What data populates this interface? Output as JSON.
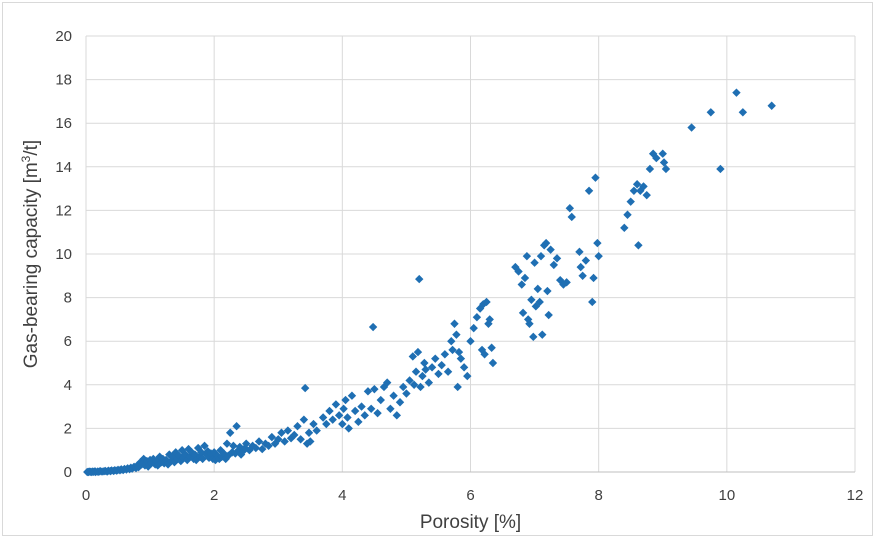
{
  "chart_data": {
    "type": "scatter",
    "xlabel": "Porosity [%]",
    "ylabel": {
      "prefix": "Gas-bearing capacity [m",
      "superscript": "3",
      "suffix": "/t]"
    },
    "xlim": [
      0,
      12
    ],
    "ylim": [
      0,
      20
    ],
    "xticks": [
      "0",
      "2",
      "4",
      "6",
      "8",
      "10",
      "12"
    ],
    "yticks": [
      "0",
      "2",
      "4",
      "6",
      "8",
      "10",
      "12",
      "14",
      "16",
      "18",
      "20"
    ],
    "grid": true,
    "marker": "diamond",
    "color": "#1f6fb3",
    "series": [
      {
        "points": [
          [
            0.02,
            0.0
          ],
          [
            0.04,
            0.0
          ],
          [
            0.05,
            0.02
          ],
          [
            0.07,
            0.01
          ],
          [
            0.09,
            0.0
          ],
          [
            0.1,
            0.02
          ],
          [
            0.12,
            0.01
          ],
          [
            0.14,
            0.03
          ],
          [
            0.15,
            0.0
          ],
          [
            0.18,
            0.02
          ],
          [
            0.2,
            0.01
          ],
          [
            0.22,
            0.04
          ],
          [
            0.25,
            0.02
          ],
          [
            0.28,
            0.03
          ],
          [
            0.3,
            0.05
          ],
          [
            0.33,
            0.02
          ],
          [
            0.35,
            0.06
          ],
          [
            0.38,
            0.04
          ],
          [
            0.4,
            0.07
          ],
          [
            0.43,
            0.05
          ],
          [
            0.45,
            0.08
          ],
          [
            0.48,
            0.06
          ],
          [
            0.5,
            0.1
          ],
          [
            0.53,
            0.08
          ],
          [
            0.55,
            0.12
          ],
          [
            0.58,
            0.09
          ],
          [
            0.6,
            0.14
          ],
          [
            0.63,
            0.11
          ],
          [
            0.65,
            0.17
          ],
          [
            0.68,
            0.13
          ],
          [
            0.7,
            0.2
          ],
          [
            0.72,
            0.15
          ],
          [
            0.75,
            0.24
          ],
          [
            0.78,
            0.18
          ],
          [
            0.8,
            0.3
          ],
          [
            0.82,
            0.22
          ],
          [
            0.85,
            0.45
          ],
          [
            0.87,
            0.35
          ],
          [
            0.9,
            0.6
          ],
          [
            0.92,
            0.3
          ],
          [
            0.95,
            0.5
          ],
          [
            0.97,
            0.25
          ],
          [
            1.0,
            0.55
          ],
          [
            1.02,
            0.4
          ],
          [
            1.05,
            0.6
          ],
          [
            1.08,
            0.35
          ],
          [
            1.1,
            0.5
          ],
          [
            1.12,
            0.3
          ],
          [
            1.15,
            0.7
          ],
          [
            1.18,
            0.45
          ],
          [
            1.2,
            0.6
          ],
          [
            1.22,
            0.4
          ],
          [
            1.25,
            0.55
          ],
          [
            1.28,
            0.35
          ],
          [
            1.3,
            0.8
          ],
          [
            1.33,
            0.5
          ],
          [
            1.35,
            0.7
          ],
          [
            1.38,
            0.45
          ],
          [
            1.4,
            0.9
          ],
          [
            1.42,
            0.6
          ],
          [
            1.45,
            0.75
          ],
          [
            1.48,
            0.5
          ],
          [
            1.5,
            1.0
          ],
          [
            1.52,
            0.65
          ],
          [
            1.55,
            0.8
          ],
          [
            1.58,
            0.55
          ],
          [
            1.6,
            1.05
          ],
          [
            1.62,
            0.7
          ],
          [
            1.65,
            0.9
          ],
          [
            1.68,
            0.6
          ],
          [
            1.7,
            0.8
          ],
          [
            1.72,
            0.55
          ],
          [
            1.75,
            1.1
          ],
          [
            1.78,
            0.7
          ],
          [
            1.8,
            0.9
          ],
          [
            1.82,
            0.6
          ],
          [
            1.85,
            1.2
          ],
          [
            1.88,
            0.8
          ],
          [
            1.9,
            0.95
          ],
          [
            1.92,
            0.65
          ],
          [
            1.95,
            0.85
          ],
          [
            1.98,
            0.6
          ],
          [
            2.0,
            0.9
          ],
          [
            2.02,
            0.55
          ],
          [
            2.05,
            0.75
          ],
          [
            2.08,
            0.6
          ],
          [
            2.1,
            1.0
          ],
          [
            2.12,
            0.7
          ],
          [
            2.15,
            0.85
          ],
          [
            2.18,
            0.6
          ],
          [
            2.2,
            1.3
          ],
          [
            2.22,
            0.75
          ],
          [
            2.25,
            1.8
          ],
          [
            2.28,
            0.9
          ],
          [
            2.3,
            1.2
          ],
          [
            2.33,
            0.85
          ],
          [
            2.35,
            2.1
          ],
          [
            2.38,
            1.0
          ],
          [
            2.4,
            1.15
          ],
          [
            2.42,
            0.8
          ],
          [
            2.45,
            0.95
          ],
          [
            2.48,
            1.1
          ],
          [
            2.5,
            1.3
          ],
          [
            2.55,
            1.0
          ],
          [
            2.6,
            1.2
          ],
          [
            2.65,
            1.1
          ],
          [
            2.7,
            1.4
          ],
          [
            2.75,
            1.05
          ],
          [
            2.8,
            1.3
          ],
          [
            2.85,
            1.2
          ],
          [
            2.9,
            1.6
          ],
          [
            2.95,
            1.3
          ],
          [
            3.0,
            1.5
          ],
          [
            3.05,
            1.8
          ],
          [
            3.1,
            1.4
          ],
          [
            3.15,
            1.9
          ],
          [
            3.2,
            1.55
          ],
          [
            3.25,
            1.7
          ],
          [
            3.3,
            2.1
          ],
          [
            3.35,
            1.5
          ],
          [
            3.4,
            2.4
          ],
          [
            3.42,
            3.85
          ],
          [
            3.45,
            1.3
          ],
          [
            3.48,
            1.8
          ],
          [
            3.5,
            1.4
          ],
          [
            3.55,
            2.2
          ],
          [
            3.6,
            1.9
          ],
          [
            3.7,
            2.5
          ],
          [
            3.75,
            2.2
          ],
          [
            3.8,
            2.8
          ],
          [
            3.85,
            2.4
          ],
          [
            3.9,
            3.1
          ],
          [
            3.95,
            2.6
          ],
          [
            4.0,
            2.2
          ],
          [
            4.02,
            2.9
          ],
          [
            4.05,
            3.3
          ],
          [
            4.08,
            2.5
          ],
          [
            4.1,
            2.0
          ],
          [
            4.15,
            3.5
          ],
          [
            4.2,
            2.8
          ],
          [
            4.25,
            2.3
          ],
          [
            4.3,
            3.0
          ],
          [
            4.35,
            2.6
          ],
          [
            4.4,
            3.7
          ],
          [
            4.45,
            2.9
          ],
          [
            4.48,
            6.65
          ],
          [
            4.5,
            3.8
          ],
          [
            4.55,
            2.7
          ],
          [
            4.6,
            3.3
          ],
          [
            4.65,
            3.9
          ],
          [
            4.7,
            4.1
          ],
          [
            4.75,
            2.9
          ],
          [
            4.8,
            3.5
          ],
          [
            4.85,
            2.6
          ],
          [
            4.9,
            3.2
          ],
          [
            4.95,
            3.9
          ],
          [
            5.0,
            3.6
          ],
          [
            5.05,
            4.2
          ],
          [
            5.1,
            5.3
          ],
          [
            5.12,
            4.0
          ],
          [
            5.15,
            4.6
          ],
          [
            5.18,
            5.5
          ],
          [
            5.2,
            8.85
          ],
          [
            5.22,
            3.9
          ],
          [
            5.25,
            4.4
          ],
          [
            5.28,
            5.0
          ],
          [
            5.3,
            4.7
          ],
          [
            5.35,
            4.1
          ],
          [
            5.4,
            4.8
          ],
          [
            5.45,
            5.2
          ],
          [
            5.5,
            4.5
          ],
          [
            5.55,
            4.9
          ],
          [
            5.6,
            5.4
          ],
          [
            5.65,
            4.6
          ],
          [
            5.7,
            6.0
          ],
          [
            5.72,
            5.6
          ],
          [
            5.75,
            6.8
          ],
          [
            5.78,
            6.3
          ],
          [
            5.8,
            3.9
          ],
          [
            5.82,
            5.5
          ],
          [
            5.85,
            5.2
          ],
          [
            5.9,
            4.8
          ],
          [
            5.95,
            4.4
          ],
          [
            6.0,
            6.0
          ],
          [
            6.05,
            6.6
          ],
          [
            6.1,
            7.1
          ],
          [
            6.15,
            7.5
          ],
          [
            6.18,
            5.6
          ],
          [
            6.2,
            7.7
          ],
          [
            6.22,
            5.4
          ],
          [
            6.25,
            7.8
          ],
          [
            6.28,
            6.8
          ],
          [
            6.3,
            7.0
          ],
          [
            6.33,
            5.7
          ],
          [
            6.35,
            5.0
          ],
          [
            6.7,
            9.4
          ],
          [
            6.75,
            9.2
          ],
          [
            6.8,
            8.6
          ],
          [
            6.82,
            7.3
          ],
          [
            6.85,
            8.9
          ],
          [
            6.88,
            9.9
          ],
          [
            6.9,
            7.0
          ],
          [
            6.92,
            6.8
          ],
          [
            6.95,
            7.9
          ],
          [
            6.98,
            6.2
          ],
          [
            7.0,
            9.6
          ],
          [
            7.02,
            7.6
          ],
          [
            7.05,
            8.4
          ],
          [
            7.08,
            7.8
          ],
          [
            7.1,
            9.9
          ],
          [
            7.12,
            6.3
          ],
          [
            7.15,
            10.4
          ],
          [
            7.18,
            10.5
          ],
          [
            7.2,
            8.3
          ],
          [
            7.22,
            7.2
          ],
          [
            7.25,
            10.2
          ],
          [
            7.3,
            9.5
          ],
          [
            7.35,
            9.8
          ],
          [
            7.4,
            8.8
          ],
          [
            7.45,
            8.6
          ],
          [
            7.5,
            8.7
          ],
          [
            7.55,
            12.1
          ],
          [
            7.58,
            11.7
          ],
          [
            7.7,
            10.1
          ],
          [
            7.72,
            9.4
          ],
          [
            7.75,
            9.0
          ],
          [
            7.8,
            9.7
          ],
          [
            7.85,
            12.9
          ],
          [
            7.9,
            7.8
          ],
          [
            7.92,
            8.9
          ],
          [
            7.95,
            13.5
          ],
          [
            7.98,
            10.5
          ],
          [
            8.0,
            9.9
          ],
          [
            8.4,
            11.2
          ],
          [
            8.45,
            11.8
          ],
          [
            8.5,
            12.4
          ],
          [
            8.55,
            12.9
          ],
          [
            8.6,
            13.2
          ],
          [
            8.62,
            10.4
          ],
          [
            8.65,
            12.9
          ],
          [
            8.7,
            13.1
          ],
          [
            8.75,
            12.7
          ],
          [
            8.8,
            13.9
          ],
          [
            8.85,
            14.6
          ],
          [
            8.9,
            14.4
          ],
          [
            9.0,
            14.6
          ],
          [
            9.02,
            14.2
          ],
          [
            9.05,
            13.9
          ],
          [
            9.45,
            15.8
          ],
          [
            9.75,
            16.5
          ],
          [
            9.9,
            13.9
          ],
          [
            10.15,
            17.4
          ],
          [
            10.25,
            16.5
          ],
          [
            10.7,
            16.8
          ]
        ]
      }
    ]
  }
}
